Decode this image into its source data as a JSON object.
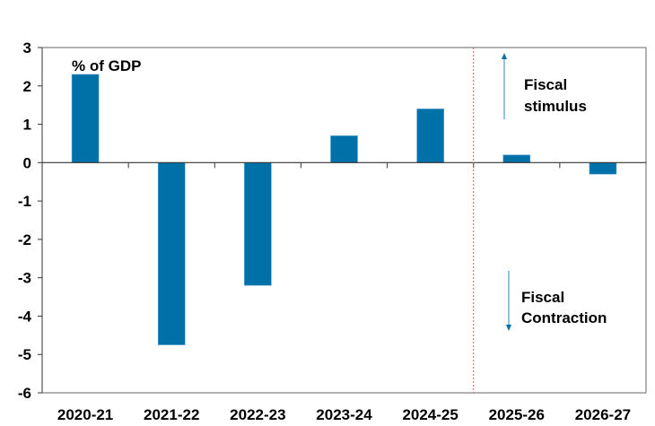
{
  "chart_data": {
    "type": "bar",
    "title": "",
    "xlabel": "",
    "ylabel": "% of GDP",
    "categories": [
      "2020-21",
      "2021-22",
      "2022-23",
      "2023-24",
      "2024-25",
      "2025-26",
      "2026-27"
    ],
    "values": [
      2.3,
      -4.75,
      -3.2,
      0.7,
      1.4,
      0.2,
      -0.3
    ],
    "ylim": [
      -6,
      3
    ],
    "yticks": [
      "3",
      "2",
      "1",
      "0",
      "-1",
      "-2",
      "-3",
      "-4",
      "-5",
      "-6"
    ],
    "ytick_values": [
      3,
      2,
      1,
      0,
      -1,
      -2,
      -3,
      -4,
      -5,
      -6
    ],
    "grid": false,
    "bar_color": "#0070A8",
    "forecast_divider_after": "2024-25",
    "divider_color": "#E8504A",
    "annotations": {
      "unit_label": "% of GDP",
      "stimulus": [
        "Fiscal",
        "stimulus"
      ],
      "contraction": [
        "Fiscal",
        "Contraction"
      ]
    }
  }
}
